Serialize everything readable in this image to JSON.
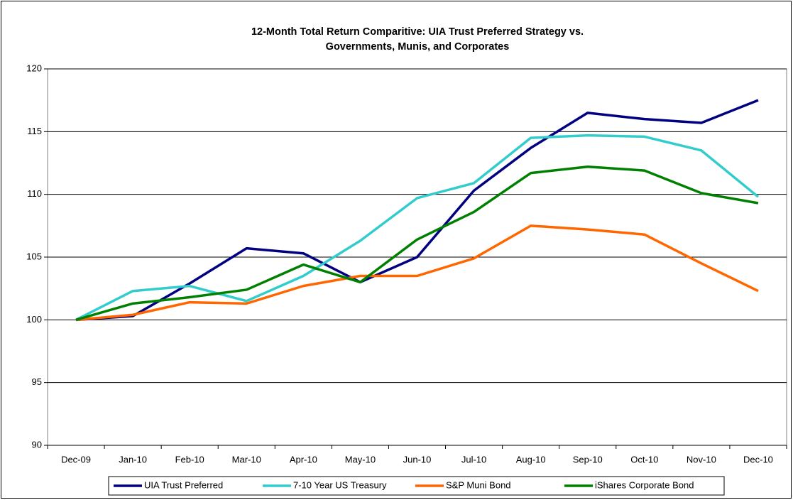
{
  "chart_data": {
    "type": "line",
    "title": [
      "12-Month Total Return Comparitive: UIA Trust Preferred Strategy vs.",
      "Governments, Munis, and Corporates"
    ],
    "categories": [
      "Dec-09",
      "Jan-10",
      "Feb-10",
      "Mar-10",
      "Apr-10",
      "May-10",
      "Jun-10",
      "Jul-10",
      "Aug-10",
      "Sep-10",
      "Oct-10",
      "Nov-10",
      "Dec-10"
    ],
    "series": [
      {
        "name": "UIA Trust Preferred",
        "color": "#000080",
        "values": [
          100,
          100.3,
          102.9,
          105.7,
          105.3,
          103.0,
          105.0,
          110.3,
          113.7,
          116.5,
          116.0,
          115.7,
          117.5
        ]
      },
      {
        "name": "7-10 Year US Treasury",
        "color": "#33CCCC",
        "values": [
          100,
          102.3,
          102.7,
          101.5,
          103.5,
          106.3,
          109.7,
          110.9,
          114.5,
          114.7,
          114.6,
          113.5,
          109.8
        ]
      },
      {
        "name": "S&P Muni Bond",
        "color": "#FF6600",
        "values": [
          100,
          100.4,
          101.4,
          101.3,
          102.7,
          103.5,
          103.5,
          104.9,
          107.5,
          107.2,
          106.8,
          104.5,
          102.3
        ]
      },
      {
        "name": "iShares Corporate Bond",
        "color": "#008000",
        "values": [
          100,
          101.3,
          101.8,
          102.4,
          104.4,
          103.0,
          106.4,
          108.6,
          111.7,
          112.2,
          111.9,
          110.1,
          109.3
        ]
      }
    ],
    "ylim": [
      90,
      120
    ],
    "yticks": [
      90,
      95,
      100,
      105,
      110,
      115,
      120
    ],
    "grid": true,
    "legend": "bottom"
  }
}
